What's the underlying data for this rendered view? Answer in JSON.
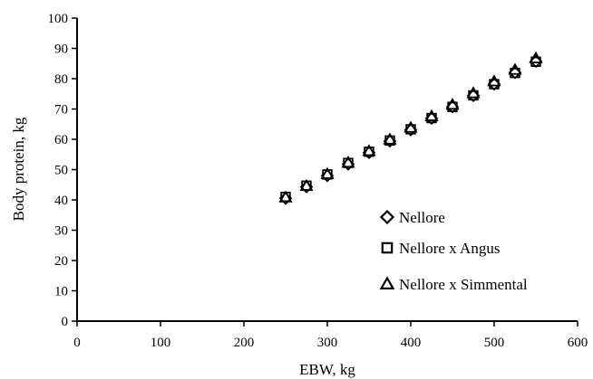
{
  "chart_data": {
    "type": "scatter",
    "xlabel": "EBW, kg",
    "ylabel": "Body protein, kg",
    "xlim": [
      0,
      600
    ],
    "ylim": [
      0,
      100
    ],
    "x_ticks": [
      "0",
      "100",
      "200",
      "300",
      "400",
      "500",
      "600"
    ],
    "y_ticks": [
      "0",
      "10",
      "20",
      "30",
      "40",
      "50",
      "60",
      "70",
      "80",
      "90",
      "100"
    ],
    "grid": false,
    "legend_position": "bottom-right",
    "series": [
      {
        "name": "Nellore",
        "marker": "diamond",
        "x": [
          250,
          275,
          300,
          325,
          350,
          375,
          400,
          425,
          450,
          475,
          500,
          525,
          550
        ],
        "y": [
          40.5,
          44.3,
          48.0,
          51.8,
          55.6,
          59.4,
          63.1,
          66.9,
          70.7,
          74.4,
          78.2,
          82.0,
          85.7
        ]
      },
      {
        "name": "Nellore x Angus",
        "marker": "square",
        "x": [
          250,
          275,
          300,
          325,
          350,
          375,
          400,
          425,
          450,
          475,
          500,
          525,
          550
        ],
        "y": [
          41.0,
          44.7,
          48.4,
          52.2,
          55.9,
          59.6,
          63.3,
          67.0,
          70.7,
          74.5,
          78.2,
          81.9,
          85.6
        ]
      },
      {
        "name": "Nellore x Simmental",
        "marker": "triangle",
        "x": [
          250,
          275,
          300,
          325,
          350,
          375,
          400,
          425,
          450,
          475,
          500,
          525,
          550
        ],
        "y": [
          40.8,
          44.6,
          48.5,
          52.3,
          56.1,
          59.9,
          63.8,
          67.6,
          71.4,
          75.2,
          79.1,
          82.9,
          86.7
        ]
      }
    ]
  }
}
